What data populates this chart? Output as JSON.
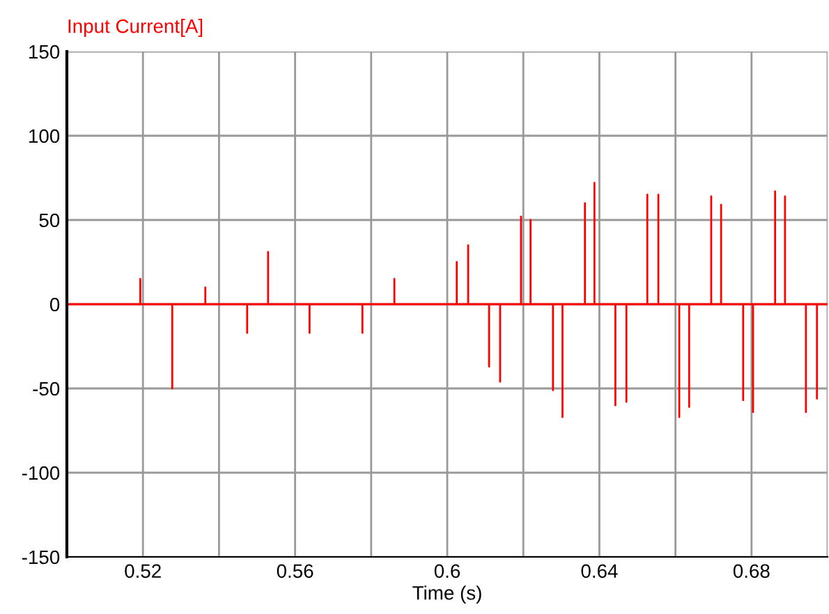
{
  "chart_data": {
    "type": "line",
    "title": "Input Current[A]",
    "xlabel": "Time (s)",
    "x": [
      0.5,
      0.5193,
      0.5193,
      0.5193,
      0.5277,
      0.5277,
      0.5277,
      0.5364,
      0.5364,
      0.5364,
      0.5474,
      0.5474,
      0.5474,
      0.5529,
      0.5529,
      0.5529,
      0.5638,
      0.5638,
      0.5638,
      0.5777,
      0.5777,
      0.5777,
      0.5861,
      0.5861,
      0.5861,
      0.6025,
      0.6025,
      0.6025,
      0.6055,
      0.6055,
      0.6055,
      0.611,
      0.611,
      0.611,
      0.6139,
      0.6139,
      0.6139,
      0.6194,
      0.6194,
      0.6194,
      0.6219,
      0.6219,
      0.6219,
      0.6278,
      0.6278,
      0.6278,
      0.6303,
      0.6303,
      0.6303,
      0.6362,
      0.6362,
      0.6362,
      0.6387,
      0.6387,
      0.6387,
      0.6442,
      0.6442,
      0.6442,
      0.6471,
      0.6471,
      0.6471,
      0.6526,
      0.6526,
      0.6526,
      0.6555,
      0.6555,
      0.6555,
      0.661,
      0.661,
      0.661,
      0.6636,
      0.6636,
      0.6636,
      0.6694,
      0.6694,
      0.6694,
      0.672,
      0.672,
      0.672,
      0.6778,
      0.6778,
      0.6778,
      0.6804,
      0.6804,
      0.6804,
      0.6862,
      0.6862,
      0.6862,
      0.6888,
      0.6888,
      0.6888,
      0.6943,
      0.6943,
      0.6943,
      0.6972,
      0.6972,
      0.6972,
      0.7
    ],
    "series": [
      {
        "color": "#ff0000",
        "values": [
          0,
          0,
          15,
          0,
          0,
          -50,
          0,
          0,
          10,
          0,
          0,
          -17,
          0,
          0,
          31,
          0,
          0,
          -17,
          0,
          0,
          -17,
          0,
          0,
          15,
          0,
          0,
          25,
          0,
          0,
          35,
          0,
          0,
          -37,
          0,
          0,
          -46,
          0,
          0,
          52,
          0,
          0,
          50,
          0,
          0,
          -51,
          0,
          0,
          -67,
          0,
          0,
          60,
          0,
          0,
          72,
          0,
          0,
          -60,
          0,
          0,
          -58,
          0,
          0,
          65,
          0,
          0,
          65,
          0,
          0,
          -67,
          0,
          0,
          -61,
          0,
          0,
          64,
          0,
          0,
          59,
          0,
          0,
          -57,
          0,
          0,
          -64,
          0,
          0,
          67,
          0,
          0,
          64,
          0,
          0,
          -64,
          0,
          0,
          -56,
          0,
          0
        ]
      }
    ],
    "xlim": [
      0.5,
      0.7
    ],
    "ylim": [
      -150,
      150
    ],
    "xticks": [
      {
        "value": 0.5,
        "label": null
      },
      0.52,
      {
        "value": 0.54,
        "label": null
      },
      0.56,
      {
        "value": 0.58,
        "label": null
      },
      {
        "value": 0.6,
        "label": "0.6"
      },
      {
        "value": 0.62,
        "label": null
      },
      0.64,
      {
        "value": 0.66,
        "label": null
      },
      0.68,
      {
        "value": 0.7,
        "label": null
      }
    ],
    "yticks": [
      -150,
      -100,
      -50,
      0,
      50,
      100,
      150
    ],
    "grid": true,
    "legend": false
  }
}
